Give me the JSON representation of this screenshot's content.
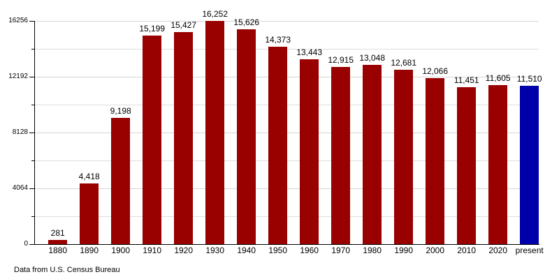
{
  "chart_data": {
    "type": "bar",
    "title": "",
    "xlabel": "",
    "ylabel": "",
    "categories": [
      "1880",
      "1890",
      "1900",
      "1910",
      "1920",
      "1930",
      "1940",
      "1950",
      "1960",
      "1970",
      "1980",
      "1990",
      "2000",
      "2010",
      "2020",
      "present"
    ],
    "values": [
      281,
      4418,
      9198,
      15199,
      15427,
      16252,
      15626,
      14373,
      13443,
      12915,
      13048,
      12681,
      12066,
      11451,
      11605,
      11510
    ],
    "value_labels": [
      "281",
      "4,418",
      "9,198",
      "15,199",
      "15,427",
      "16,252",
      "15,626",
      "14,373",
      "13,443",
      "12,915",
      "13,048",
      "12,681",
      "12,066",
      "11,451",
      "11,605",
      "11,510"
    ],
    "ylim": [
      0,
      16256
    ],
    "y_major_ticks": [
      0,
      4064,
      8128,
      12192,
      16256
    ],
    "y_major_tick_labels": [
      "0",
      "4064",
      "8128",
      "12192",
      "16256"
    ],
    "y_minor_ticks": [
      2032,
      6096,
      10160,
      14224
    ],
    "grid": "horizontal",
    "legend": "none",
    "bar_color": "#990000",
    "highlight_bar_color": "#0000AA",
    "highlight_index": 15,
    "axis_color": "#000000",
    "gridline_color": "#dedede",
    "footer": "Data from U.S. Census Bureau"
  }
}
